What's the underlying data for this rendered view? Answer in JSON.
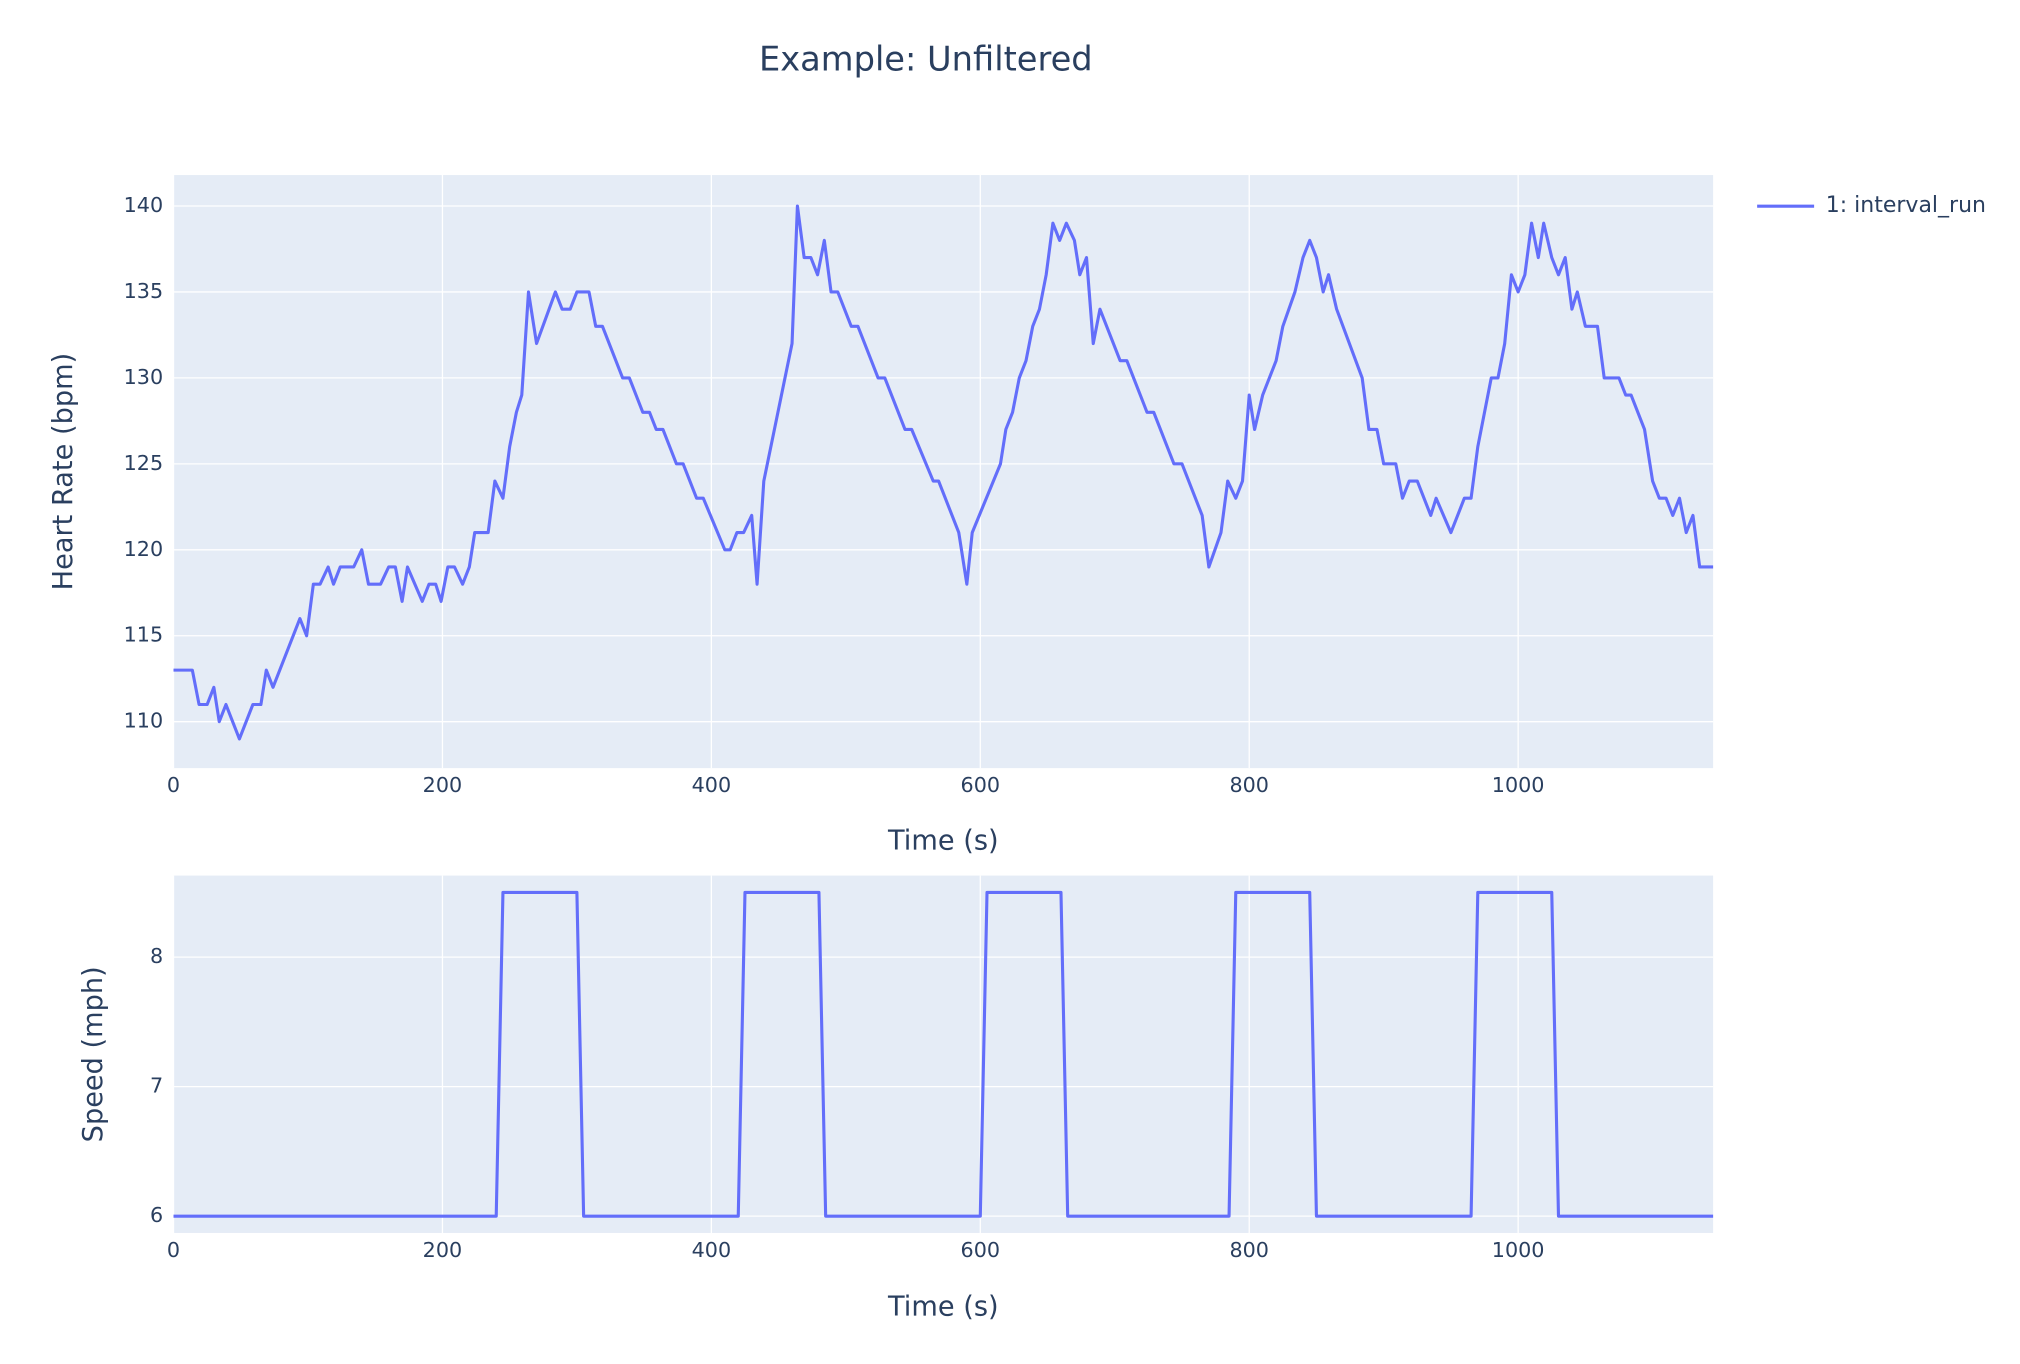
{
  "chart_data": [
    {
      "type": "line",
      "title": "Example: Unfiltered",
      "xlabel": "Time (s)",
      "ylabel": "Heart Rate (bpm)",
      "xlim": [
        0,
        1145
      ],
      "xticks": [
        0,
        200,
        400,
        600,
        800,
        1000
      ],
      "ylim": [
        107.3,
        141.8
      ],
      "yticks": [
        110,
        115,
        120,
        125,
        130,
        135,
        140
      ],
      "grid": true,
      "legend": "top-right",
      "x": [
        0,
        14,
        19,
        25,
        30,
        34,
        39,
        49,
        59,
        65,
        69,
        74,
        94,
        99,
        104,
        109,
        115,
        119,
        124,
        134,
        140,
        145,
        154,
        160,
        165,
        170,
        174,
        185,
        190,
        195,
        199,
        204,
        209,
        215,
        220,
        224,
        234,
        239,
        245,
        250,
        255,
        259,
        264,
        270,
        284,
        289,
        295,
        300,
        309,
        314,
        319,
        334,
        339,
        349,
        354,
        359,
        364,
        374,
        379,
        389,
        394,
        410,
        414,
        419,
        424,
        430,
        434,
        439,
        460,
        464,
        469,
        474,
        479,
        484,
        489,
        494,
        504,
        509,
        524,
        529,
        544,
        549,
        565,
        569,
        584,
        590,
        594,
        615,
        619,
        624,
        629,
        634,
        639,
        644,
        649,
        654,
        659,
        664,
        670,
        674,
        679,
        684,
        689,
        704,
        709,
        724,
        729,
        744,
        750,
        765,
        770,
        779,
        784,
        790,
        795,
        800,
        804,
        810,
        820,
        825,
        834,
        840,
        845,
        850,
        855,
        859,
        865,
        884,
        889,
        895,
        900,
        909,
        914,
        919,
        925,
        935,
        939,
        950,
        960,
        965,
        970,
        980,
        985,
        990,
        995,
        1000,
        1005,
        1010,
        1015,
        1019,
        1025,
        1030,
        1035,
        1040,
        1044,
        1050,
        1059,
        1064,
        1075,
        1080,
        1084,
        1094,
        1100,
        1105,
        1110,
        1115,
        1120,
        1125,
        1130,
        1135,
        1145
      ],
      "series": [
        {
          "name": "1: interval_run",
          "color": "#636efa",
          "values": [
            113,
            113,
            111,
            111,
            112,
            110,
            111,
            109,
            111,
            111,
            113,
            112,
            116,
            115,
            118,
            118,
            119,
            118,
            119,
            119,
            120,
            118,
            118,
            119,
            119,
            117,
            119,
            117,
            118,
            118,
            117,
            119,
            119,
            118,
            119,
            121,
            121,
            124,
            123,
            126,
            128,
            129,
            135,
            132,
            135,
            134,
            134,
            135,
            135,
            133,
            133,
            130,
            130,
            128,
            128,
            127,
            127,
            125,
            125,
            123,
            123,
            120,
            120,
            121,
            121,
            122,
            118,
            124,
            132,
            140,
            137,
            137,
            136,
            138,
            135,
            135,
            133,
            133,
            130,
            130,
            127,
            127,
            124,
            124,
            121,
            118,
            121,
            125,
            127,
            128,
            130,
            131,
            133,
            134,
            136,
            139,
            138,
            139,
            138,
            136,
            137,
            132,
            134,
            131,
            131,
            128,
            128,
            125,
            125,
            122,
            119,
            121,
            124,
            123,
            124,
            129,
            127,
            129,
            131,
            133,
            135,
            137,
            138,
            137,
            135,
            136,
            134,
            130,
            127,
            127,
            125,
            125,
            123,
            124,
            124,
            122,
            123,
            121,
            123,
            123,
            126,
            130,
            130,
            132,
            136,
            135,
            136,
            139,
            137,
            139,
            137,
            136,
            137,
            134,
            135,
            133,
            133,
            130,
            130,
            129,
            129,
            127,
            124,
            123,
            123,
            122,
            123,
            121,
            122,
            119,
            119
          ]
        }
      ]
    },
    {
      "type": "line",
      "xlabel": "Time (s)",
      "ylabel": "Speed (mph)",
      "xlim": [
        0,
        1145
      ],
      "xticks": [
        0,
        200,
        400,
        600,
        800,
        1000
      ],
      "ylim": [
        5.87,
        8.63
      ],
      "yticks": [
        6,
        7,
        8
      ],
      "grid": true,
      "x": [
        0,
        240,
        245,
        300,
        305,
        420,
        425,
        480,
        485,
        600,
        605,
        660,
        665,
        785,
        790,
        845,
        850,
        965,
        970,
        1025,
        1030,
        1145
      ],
      "series": [
        {
          "color": "#636efa",
          "values": [
            6,
            6,
            8.5,
            8.5,
            6,
            6,
            8.5,
            8.5,
            6,
            6,
            8.5,
            8.5,
            6,
            6,
            8.5,
            8.5,
            6,
            6,
            8.5,
            8.5,
            6,
            6
          ]
        }
      ]
    }
  ]
}
